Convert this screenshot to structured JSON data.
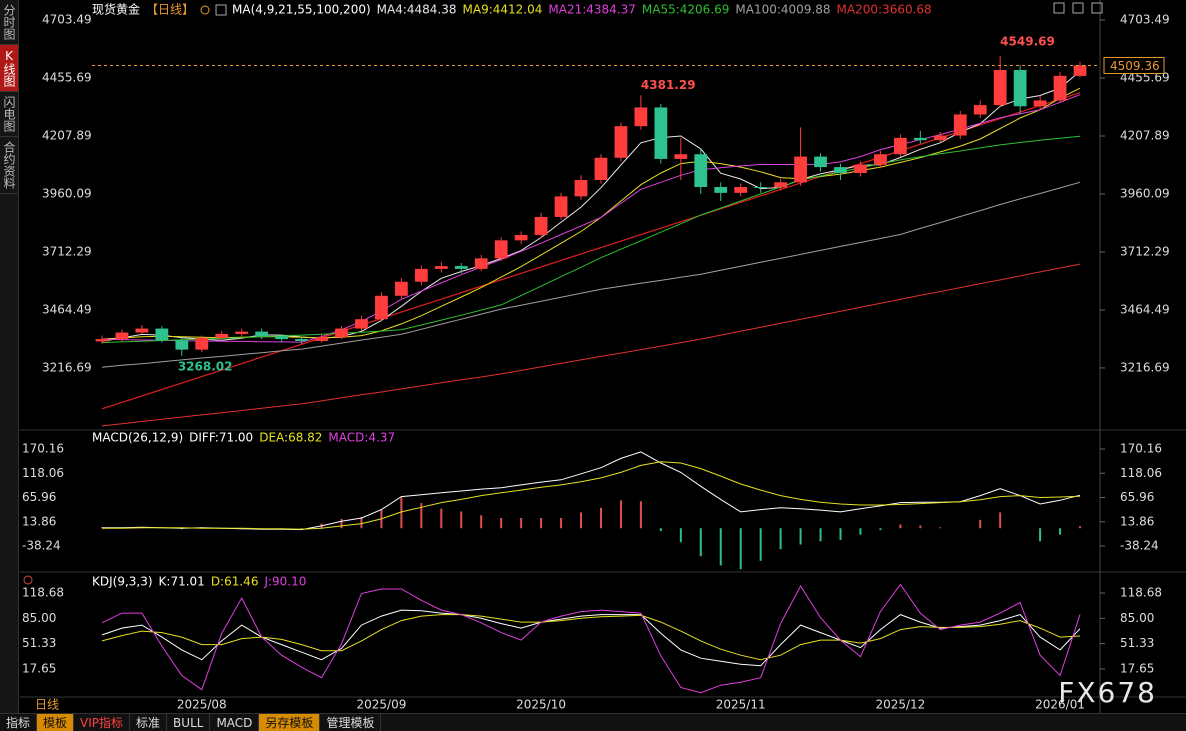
{
  "header": {
    "symbol": "现货黄金",
    "period": "【日线】",
    "ma_params": "MA(4,9,21,55,100,200)",
    "period_label": "日线",
    "watermark": "FX678"
  },
  "sidebar": [
    "分时图",
    "K线图",
    "闪电图",
    "合约资料"
  ],
  "toolbar": [
    "指标",
    "模板",
    "VIP指标",
    "标准",
    "BULL",
    "MACD",
    "另存模板",
    "管理模板"
  ],
  "chart_data": [
    {
      "type": "candlestick",
      "up_color": "#ff3d3d",
      "down_color": "#2ec28e",
      "last_color": "#e89a30",
      "categories": [
        null,
        null,
        null,
        null,
        null,
        "2025/08",
        null,
        null,
        null,
        null,
        null,
        null,
        null,
        null,
        "2025/09",
        null,
        null,
        null,
        null,
        null,
        null,
        null,
        "2025/10",
        null,
        null,
        null,
        null,
        null,
        null,
        null,
        null,
        null,
        "2025/11",
        null,
        null,
        null,
        null,
        null,
        null,
        null,
        "2025/12",
        null,
        null,
        null,
        null,
        null,
        null,
        null,
        "2026/01",
        null
      ],
      "open": [
        3330,
        3340,
        3368,
        3385,
        3335,
        3295,
        3345,
        3362,
        3372,
        3352,
        3340,
        3332,
        3348,
        3385,
        3425,
        3525,
        3585,
        3640,
        3652,
        3640,
        3685,
        3762,
        3785,
        3862,
        3950,
        4020,
        4115,
        4250,
        4330,
        4110,
        4130,
        3990,
        3965,
        3990,
        3988,
        4010,
        4120,
        4075,
        4050,
        4085,
        4130,
        4200,
        4190,
        4210,
        4300,
        4340,
        4490,
        4335,
        4360,
        4465
      ],
      "high": [
        3355,
        3380,
        3400,
        3395,
        3345,
        3355,
        3375,
        3385,
        3385,
        3360,
        3350,
        3360,
        3395,
        3440,
        3540,
        3600,
        3655,
        3670,
        3665,
        3700,
        3775,
        3800,
        3880,
        3965,
        4040,
        4130,
        4265,
        4381.29,
        4345,
        4200,
        4150,
        4010,
        4005,
        4010,
        4025,
        4245,
        4135,
        4090,
        4100,
        4145,
        4215,
        4230,
        4225,
        4315,
        4360,
        4549.69,
        4510,
        4380,
        4480,
        4525
      ],
      "low": [
        3320,
        3330,
        3360,
        3325,
        3268.02,
        3285,
        3335,
        3350,
        3340,
        3325,
        3320,
        3325,
        3340,
        3375,
        3415,
        3510,
        3570,
        3625,
        3620,
        3630,
        3675,
        3745,
        3770,
        3850,
        3935,
        4005,
        4100,
        4235,
        4090,
        4020,
        3960,
        3930,
        3950,
        3965,
        3975,
        3995,
        4055,
        4020,
        4035,
        4070,
        4120,
        4175,
        4180,
        4195,
        4285,
        4330,
        4300,
        4320,
        4350,
        4460
      ],
      "close": [
        3340,
        3368,
        3385,
        3335,
        3295,
        3345,
        3362,
        3372,
        3352,
        3340,
        3332,
        3348,
        3385,
        3425,
        3525,
        3585,
        3640,
        3652,
        3640,
        3685,
        3762,
        3785,
        3862,
        3950,
        4020,
        4115,
        4250,
        4330,
        4110,
        4130,
        3990,
        3965,
        3990,
        3988,
        4010,
        4120,
        4075,
        4050,
        4085,
        4130,
        4200,
        4190,
        4210,
        4300,
        4340,
        4490,
        4335,
        4360,
        4465,
        4509.36
      ],
      "series": [
        {
          "name": "MA4:4484.38",
          "color": "#e8e8e8",
          "values": [
            3330,
            3345,
            3360,
            3357,
            3346,
            3340,
            3335,
            3344,
            3358,
            3357,
            3349,
            3343,
            3351,
            3373,
            3420,
            3480,
            3544,
            3600,
            3629,
            3654,
            3685,
            3718,
            3774,
            3840,
            3904,
            3987,
            4084,
            4179,
            4201,
            4208,
            4153,
            4049,
            4024,
            3983,
            3988,
            4023,
            4046,
            4064,
            4083,
            4085,
            4116,
            4151,
            4179,
            4225,
            4260,
            4335,
            4366,
            4381,
            4413,
            4484.38
          ]
        },
        {
          "name": "MA9:4412.04",
          "color": "#e6e020",
          "values": [
            3340,
            3345,
            3350,
            3352,
            3350,
            3348,
            3346,
            3348,
            3350,
            3350,
            3348,
            3346,
            3348,
            3355,
            3375,
            3405,
            3440,
            3480,
            3520,
            3560,
            3605,
            3650,
            3700,
            3750,
            3800,
            3860,
            3930,
            4000,
            4050,
            4090,
            4100,
            4090,
            4075,
            4055,
            4030,
            4025,
            4035,
            4045,
            4060,
            4075,
            4095,
            4115,
            4140,
            4165,
            4195,
            4240,
            4285,
            4320,
            4370,
            4412.04
          ]
        },
        {
          "name": "MA21:4384.37",
          "color": "#e040e0",
          "values": [
            3340,
            3338,
            3336,
            3335,
            3333,
            3332,
            3331,
            3330,
            3329,
            3328,
            3327,
            3350,
            3380,
            3415,
            3460,
            3510,
            3545,
            3580,
            3615,
            3648,
            3680,
            3715,
            3750,
            3787,
            3823,
            3860,
            3920,
            3980,
            4010,
            4040,
            4064,
            4072,
            4080,
            4086,
            4086,
            4086,
            4086,
            4098,
            4120,
            4150,
            4171,
            4192,
            4214,
            4238,
            4262,
            4286,
            4303,
            4320,
            4352,
            4384.37
          ]
        },
        {
          "name": "MA55:4206.69",
          "color": "#2ec02e",
          "values": [
            3325,
            3328,
            3331,
            3334,
            3337,
            3340,
            3343,
            3346,
            3350,
            3353,
            3357,
            3361,
            3365,
            3369,
            3374,
            3380,
            3400,
            3421,
            3442,
            3464,
            3486,
            3526,
            3566,
            3607,
            3647,
            3688,
            3724,
            3760,
            3797,
            3833,
            3870,
            3900,
            3930,
            3960,
            3990,
            4020,
            4037,
            4054,
            4072,
            4089,
            4106,
            4119,
            4132,
            4144,
            4157,
            4170,
            4180,
            4190,
            4198,
            4206.69
          ]
        },
        {
          "name": "MA100:4009.88",
          "color": "#a0a0a0",
          "values": [
            3220,
            3228,
            3235,
            3243,
            3251,
            3259,
            3266,
            3274,
            3282,
            3290,
            3297,
            3310,
            3323,
            3336,
            3348,
            3361,
            3382,
            3404,
            3425,
            3447,
            3468,
            3485,
            3502,
            3519,
            3536,
            3553,
            3566,
            3579,
            3591,
            3604,
            3617,
            3634,
            3651,
            3668,
            3685,
            3702,
            3719,
            3736,
            3753,
            3770,
            3787,
            3813,
            3838,
            3864,
            3889,
            3915,
            3939,
            3962,
            3986,
            4009.88
          ]
        },
        {
          "name": "MA200:3660.68",
          "color": "#e03030",
          "values": [
            2969,
            2978,
            2988,
            2997,
            3007,
            3016,
            3025,
            3035,
            3044,
            3054,
            3063,
            3076,
            3089,
            3102,
            3114,
            3127,
            3140,
            3153,
            3166,
            3178,
            3191,
            3206,
            3221,
            3236,
            3251,
            3266,
            3280,
            3295,
            3310,
            3325,
            3340,
            3357,
            3374,
            3391,
            3408,
            3425,
            3442,
            3459,
            3476,
            3493,
            3510,
            3527,
            3543,
            3560,
            3577,
            3593,
            3610,
            3627,
            3644,
            3660.68
          ]
        }
      ],
      "trendline": {
        "color": "#e02020",
        "values": [
          3042,
          4393
        ]
      },
      "ylim": [
        2960,
        4755
      ],
      "yticks": [
        4703.49,
        4455.69,
        4207.89,
        3960.09,
        3712.29,
        3464.49,
        3216.69
      ]
    },
    {
      "type": "macd",
      "title": "MACD(26,12,9)",
      "up_color": "#e05050",
      "down_color": "#2ec08a",
      "series": [
        {
          "name": "DIFF:71.00",
          "color": "#ffffff",
          "style": "line",
          "values": [
            1,
            1,
            2,
            1,
            0,
            1,
            0,
            -1,
            -2,
            -2,
            -3,
            5,
            15,
            22,
            40,
            68,
            72,
            76,
            80,
            84,
            87,
            93,
            99,
            104,
            117,
            130,
            150,
            164,
            140,
            120,
            90,
            62,
            35,
            40,
            44,
            42,
            39,
            35,
            42,
            48,
            55,
            56,
            56,
            57,
            70,
            85,
            70,
            52,
            60,
            71.0
          ]
        },
        {
          "name": "DEA:68.82",
          "color": "#e6e020",
          "style": "line",
          "values": [
            0,
            0,
            1,
            1,
            1,
            0,
            0,
            0,
            -1,
            -1,
            -2,
            0,
            5,
            10,
            20,
            35,
            45,
            55,
            62,
            70,
            76,
            82,
            88,
            93,
            100,
            108,
            120,
            135,
            143,
            140,
            128,
            112,
            95,
            82,
            70,
            62,
            56,
            52,
            50,
            50,
            51,
            53,
            55,
            57,
            61,
            68,
            70,
            66,
            67,
            68.82
          ]
        },
        {
          "name": "MACD:4.37",
          "color": "#e040e0",
          "style": "bar",
          "values": [
            2,
            2,
            2,
            0,
            -2,
            2,
            0,
            -2,
            -2,
            -2,
            -2,
            10,
            20,
            24,
            40,
            66,
            54,
            42,
            36,
            28,
            22,
            22,
            22,
            22,
            34,
            44,
            60,
            58,
            -6,
            -30,
            -60,
            -80,
            -88,
            -70,
            -45,
            -35,
            -28,
            -25,
            -14,
            -4,
            8,
            6,
            2,
            0,
            18,
            34,
            0,
            -28,
            -14,
            4.37
          ]
        }
      ],
      "ylim": [
        -89.7,
        189.5
      ],
      "yticks": [
        170.16,
        118.06,
        65.96,
        13.86,
        -38.24
      ]
    },
    {
      "type": "line",
      "title": "KDJ(9,3,3)",
      "series": [
        {
          "name": "K:71.01",
          "color": "#ffffff",
          "values": [
            63,
            72,
            76,
            60,
            43,
            30,
            55,
            76,
            60,
            50,
            40,
            30,
            45,
            76,
            88,
            96,
            95,
            92,
            90,
            85,
            78,
            72,
            80,
            84,
            88,
            90,
            90,
            90,
            65,
            43,
            32,
            28,
            24,
            22,
            50,
            76,
            66,
            56,
            46,
            70,
            90,
            80,
            72,
            74,
            76,
            82,
            90,
            60,
            43,
            71.01
          ]
        },
        {
          "name": "D:61.46",
          "color": "#e6e020",
          "values": [
            55,
            62,
            68,
            66,
            60,
            50,
            50,
            58,
            60,
            57,
            50,
            42,
            42,
            55,
            70,
            82,
            88,
            90,
            90,
            88,
            84,
            80,
            80,
            82,
            85,
            87,
            88,
            89,
            80,
            68,
            55,
            44,
            36,
            30,
            36,
            50,
            56,
            56,
            52,
            58,
            70,
            74,
            73,
            73,
            74,
            77,
            82,
            72,
            60,
            61.46
          ]
        },
        {
          "name": "J:90.10",
          "color": "#e040e0",
          "values": [
            79,
            92,
            92,
            48,
            9,
            -10,
            65,
            112,
            60,
            36,
            20,
            6,
            51,
            118,
            124,
            124,
            109,
            96,
            90,
            79,
            66,
            56,
            80,
            88,
            94,
            96,
            94,
            92,
            35,
            -7,
            -14,
            -4,
            0,
            6,
            78,
            128,
            86,
            56,
            34,
            94,
            130,
            92,
            70,
            76,
            80,
            92,
            106,
            36,
            9,
            90.1
          ]
        }
      ],
      "ylim": [
        -17,
        136
      ],
      "yticks": [
        118.68,
        {
          "value": 85,
          "label": "85.00"
        },
        51.33,
        17.65
      ]
    }
  ]
}
